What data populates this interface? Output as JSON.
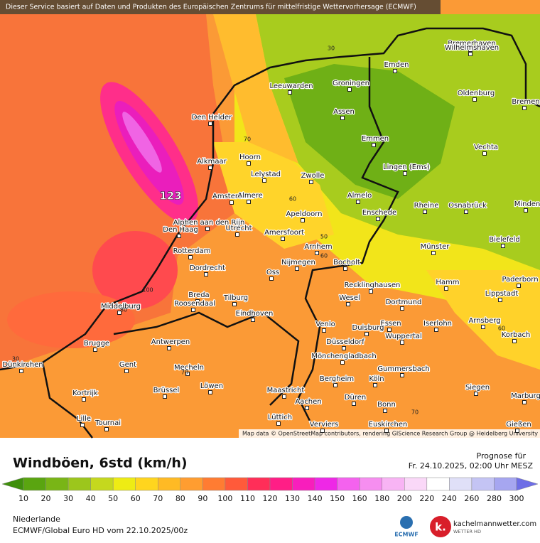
{
  "header": {
    "notice": "Dieser Service basiert auf Daten und Produkten des Europäischen Zentrums für mittelfristige Wettervorhersage (ECMWF)"
  },
  "map": {
    "attribution": "Map data © OpenStreetMap contributors, rendering GIScience Research Group @ Heidelberg University",
    "cities": [
      "Bremerhaven",
      "Wilhelmshaven",
      "Emden",
      "Leeuwarden",
      "Groningen",
      "Oldenburg",
      "Bremen",
      "Den Helder",
      "Assen",
      "Emmen",
      "Vechta",
      "Hoorn",
      "Alkmaar",
      "Lelystad",
      "Zwolle",
      "Lingen (Ems)",
      "Amsterdam",
      "Almere",
      "Almelo",
      "Apeldoorn",
      "Enschede",
      "Rheine",
      "Osnabrück",
      "Minden",
      "Alphen aan den Rijn",
      "Den Haag",
      "Utrecht",
      "Amersfoort",
      "Arnhem",
      "Münster",
      "Bielefeld",
      "Rotterdam",
      "Dordrecht",
      "Nijmegen",
      "Bocholt",
      "Oss",
      "Paderborn",
      "Hamm",
      "Recklinghausen",
      "Lippstadt",
      "Breda",
      "Tilburg",
      "Wesel",
      "Dortmund",
      "Middelburg",
      "Roosendaal",
      "Eindhoven",
      "Arnsberg",
      "Essen",
      "Iserlohn",
      "Venlo",
      "Duisburg",
      "Korbach",
      "Wuppertal",
      "Brugge",
      "Antwerpen",
      "Düsseldorf",
      "Mönchengladbach",
      "Dünkirchen",
      "Gent",
      "Mecheln",
      "Gummersbach",
      "Bergheim",
      "Köln",
      "Kortrijk",
      "Brüssel",
      "Löwen",
      "Maastricht",
      "Düren",
      "Siegen",
      "Aachen",
      "Marburg",
      "Bonn",
      "Lille",
      "Lüttich",
      "Tournai",
      "Verviers",
      "Euskirchen",
      "Gießen"
    ],
    "contour_labels": [
      30,
      70,
      60,
      50,
      60,
      100,
      80,
      70,
      70,
      60,
      30
    ],
    "peak": 123
  },
  "legend": {
    "title": "Windböen, 6std (km/h)",
    "forecast_label": "Prognose für",
    "forecast_time": "Fr. 24.10.2025, 02:00 Uhr MESZ",
    "ticks": [
      10,
      20,
      30,
      40,
      50,
      60,
      70,
      80,
      90,
      100,
      110,
      120,
      130,
      140,
      150,
      160,
      180,
      200,
      220,
      240,
      260,
      280,
      300
    ],
    "colors": [
      "#3f8f0c",
      "#5aa510",
      "#79b516",
      "#9cc61c",
      "#c5d81e",
      "#eeec14",
      "#ffd51e",
      "#ffba24",
      "#ff9d30",
      "#ff7c32",
      "#ff5a3a",
      "#ff2e58",
      "#ff1e86",
      "#f81ebc",
      "#ee28e6",
      "#f462ee",
      "#f68ef0",
      "#f8b4f4",
      "#fad8f8",
      "#ffffff",
      "#e0e0f8",
      "#c4c4f4",
      "#a6a6f0",
      "#8a8aec",
      "#6e6ee6"
    ]
  },
  "footer": {
    "region": "Niederlande",
    "model": "ECMWF/Global Euro HD vom  22.10.2025/00z",
    "ecmwf": "ECMWF",
    "site": "kachelmannwetter.com",
    "site_sub": "WETTER HD",
    "logo": "k."
  }
}
